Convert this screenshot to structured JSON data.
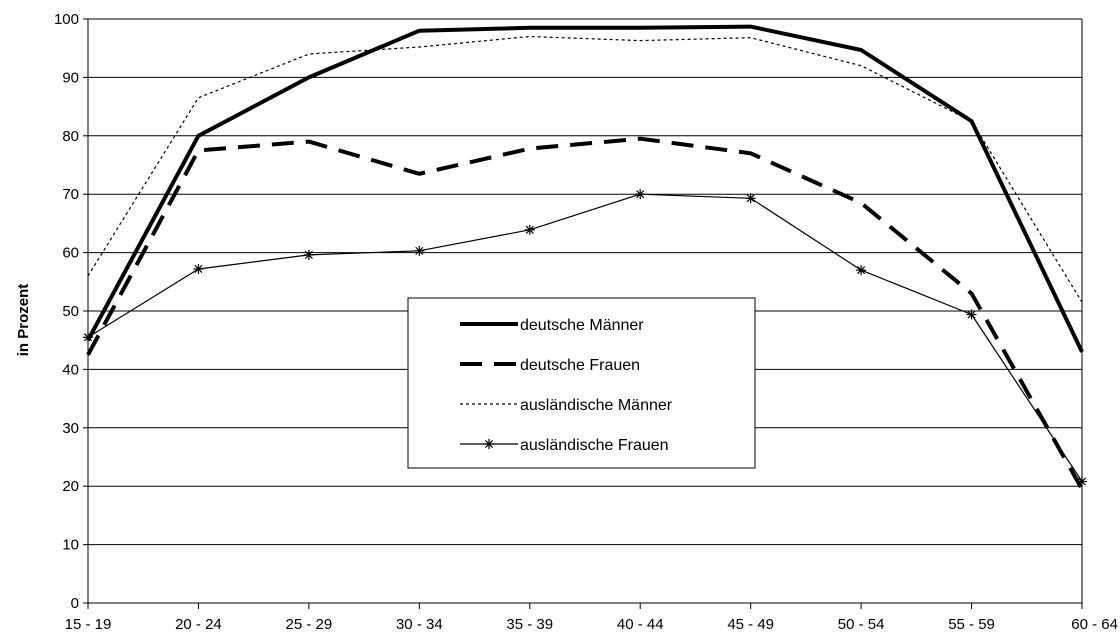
{
  "chart_data": {
    "type": "line",
    "ylabel": "in Prozent",
    "xlabel": "",
    "ylim": [
      0,
      100
    ],
    "yticks": [
      0,
      10,
      20,
      30,
      40,
      50,
      60,
      70,
      80,
      90,
      100
    ],
    "grid": "horizontal",
    "legend_position": "center",
    "categories": [
      "15 - 19",
      "20 - 24",
      "25 - 29",
      "30 - 34",
      "35 - 39",
      "40 - 44",
      "45 - 49",
      "50 - 54",
      "55 - 59",
      "60 - 64"
    ],
    "series": [
      {
        "name": "deutsche Männer",
        "style": "solid-thick",
        "color": "#000000",
        "values": [
          45,
          80,
          90,
          98,
          98.5,
          98.5,
          98.7,
          94.7,
          82.5,
          43
        ]
      },
      {
        "name": "deutsche Frauen",
        "style": "dashed-thick",
        "color": "#000000",
        "values": [
          42.5,
          77.5,
          79,
          73.5,
          77.8,
          79.5,
          77,
          68.5,
          53,
          19.5
        ]
      },
      {
        "name": "ausländische Männer",
        "style": "dotted-thin",
        "color": "#000000",
        "values": [
          56,
          86.5,
          94,
          95.2,
          97,
          96.3,
          96.8,
          92,
          82.5,
          51.5
        ]
      },
      {
        "name": "ausländische Frauen",
        "style": "thin-star",
        "color": "#000000",
        "values": [
          45.5,
          57.2,
          59.6,
          60.3,
          63.9,
          70,
          69.3,
          57,
          49.4,
          20.8
        ]
      }
    ]
  }
}
